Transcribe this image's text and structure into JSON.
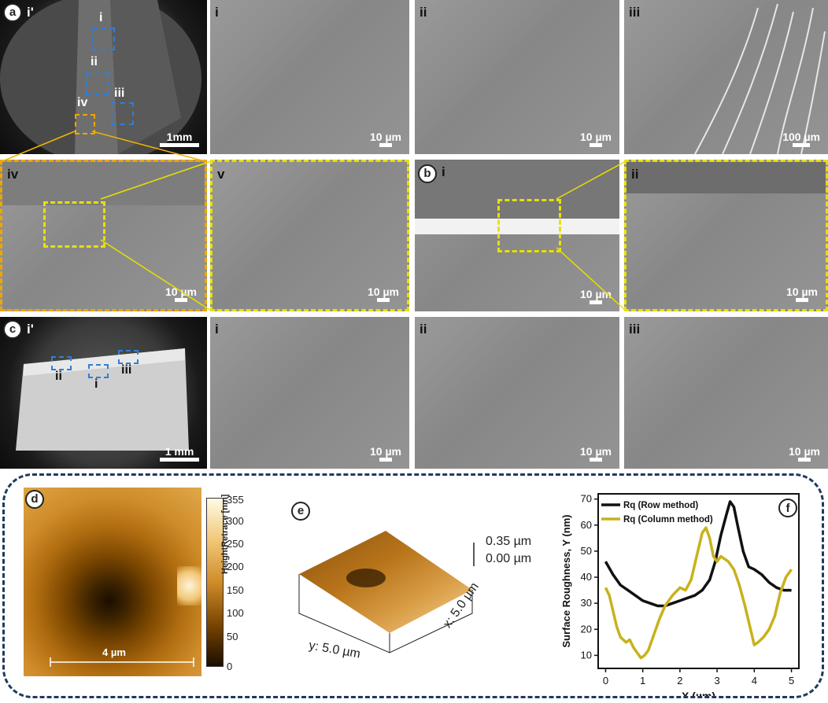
{
  "row_a": {
    "overview_label": "i'",
    "panel_letter": "a",
    "roi_labels": [
      "i",
      "ii",
      "iii",
      "iv"
    ],
    "overview_scale": "1mm",
    "tiles": [
      {
        "label": "i",
        "scale": "10 µm"
      },
      {
        "label": "ii",
        "scale": "10 µm"
      },
      {
        "label": "iii",
        "scale": "100 µm"
      }
    ]
  },
  "row_iv": {
    "tiles": [
      {
        "label": "iv",
        "scale": "10 µm"
      },
      {
        "label": "v",
        "scale": "10 µm"
      }
    ]
  },
  "row_b": {
    "panel_letter": "b",
    "tiles": [
      {
        "label": "i",
        "scale": "10 µm"
      },
      {
        "label": "ii",
        "scale": "10 µm"
      }
    ]
  },
  "row_c": {
    "panel_letter": "c",
    "overview_label": "i'",
    "roi_labels": [
      "ii",
      "i",
      "iii"
    ],
    "overview_scale": "1 mm",
    "tiles": [
      {
        "label": "i",
        "scale": "10 µm"
      },
      {
        "label": "ii",
        "scale": "10 µm"
      },
      {
        "label": "iii",
        "scale": "10 µm"
      }
    ]
  },
  "panel_d": {
    "letter": "d",
    "scale": "4 µm",
    "colorbar_label": "HeightRetrace [nm]",
    "colorbar_ticks": [
      "355",
      "300",
      "250",
      "200",
      "150",
      "100",
      "50",
      "0"
    ]
  },
  "panel_e": {
    "letter": "e",
    "z_top": "0.35 µm",
    "z_bottom": "0.00 µm",
    "y_axis": "y: 5.0 µm",
    "x_axis": "x: 5.0 µm"
  },
  "chart_data": {
    "type": "line",
    "panel_letter": "f",
    "xlabel": "X (µm)",
    "ylabel": "Surface Roughness, Y (nm)",
    "xlim": [
      -0.2,
      5.2
    ],
    "ylim": [
      5,
      72
    ],
    "xticks": [
      0,
      1,
      2,
      3,
      4,
      5
    ],
    "yticks": [
      10,
      20,
      30,
      40,
      50,
      60,
      70
    ],
    "legend_position": "top-left",
    "series": [
      {
        "name": "Rq (Row method)",
        "color": "#111111",
        "x": [
          0,
          0.2,
          0.4,
          0.6,
          0.8,
          1.0,
          1.2,
          1.4,
          1.6,
          1.8,
          2.0,
          2.2,
          2.4,
          2.6,
          2.8,
          2.95,
          3.1,
          3.25,
          3.35,
          3.45,
          3.55,
          3.7,
          3.85,
          4.0,
          4.2,
          4.4,
          4.6,
          4.8,
          5.0
        ],
        "y": [
          46,
          41,
          37,
          35,
          33,
          31,
          30,
          29,
          29,
          30,
          31,
          32,
          33,
          35,
          39,
          46,
          56,
          64,
          69,
          67,
          60,
          50,
          44,
          43,
          41,
          38,
          36,
          35,
          35
        ]
      },
      {
        "name": "Rq (Column method)",
        "color": "#c7b21c",
        "x": [
          0,
          0.1,
          0.2,
          0.3,
          0.4,
          0.55,
          0.65,
          0.75,
          0.85,
          0.95,
          1.05,
          1.15,
          1.3,
          1.45,
          1.6,
          1.8,
          2.0,
          2.15,
          2.3,
          2.45,
          2.6,
          2.7,
          2.8,
          2.9,
          3.0,
          3.1,
          3.2,
          3.3,
          3.45,
          3.6,
          3.75,
          3.9,
          4.0,
          4.1,
          4.25,
          4.4,
          4.55,
          4.7,
          4.85,
          5.0
        ],
        "y": [
          36,
          33,
          27,
          21,
          17,
          15,
          16,
          13,
          11,
          9,
          10,
          12,
          18,
          24,
          29,
          33,
          36,
          35,
          39,
          48,
          57,
          59,
          55,
          48,
          46,
          48,
          47,
          46,
          43,
          37,
          29,
          20,
          14,
          15,
          17,
          20,
          25,
          34,
          40,
          43
        ]
      }
    ]
  }
}
